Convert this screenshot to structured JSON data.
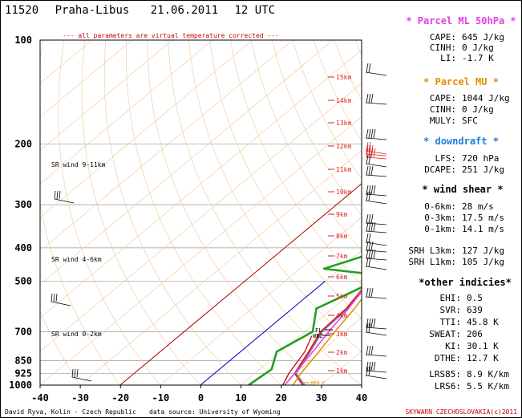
{
  "header": {
    "station": "11520",
    "place": "Praha-Libus",
    "date": "21.06.2011",
    "time": "12 UTC"
  },
  "note": "--- all parameters are virtual temperature corrected ---",
  "footer": {
    "author": "David Ryva, Kolin - Czech Republic",
    "source": "data source: University of Wyoming",
    "copyright": "SKYWARN CZECHOSLOVAKIA(c)2011"
  },
  "chart_data": {
    "type": "line",
    "chart_kind": "skew-T log-P sounding",
    "x_axis": {
      "ticks": [
        -40,
        -30,
        -20,
        -10,
        0,
        10,
        20,
        30,
        40
      ],
      "min": -40,
      "max": 40,
      "unit": "°C"
    },
    "y_axis": {
      "ticks": [
        100,
        200,
        300,
        400,
        500,
        700,
        850,
        925,
        1000
      ],
      "min": 100,
      "max": 1000,
      "unit": "hPa",
      "scale": "log"
    },
    "height_ticks": [
      "1km",
      "2km",
      "3km",
      "4km",
      "5km",
      "6km",
      "7km",
      "8km",
      "9km",
      "10km",
      "11km",
      "12km",
      "13km",
      "14km",
      "15km"
    ],
    "sr_wind_labels": [
      "SR wind 9-11km",
      "SR wind 4-6km",
      "SR wind 0-2km"
    ],
    "level_labels": [
      "FL",
      "WBZ",
      "MULY"
    ],
    "series": [
      {
        "name": "temperature",
        "color": "#dd2222",
        "points": [
          [
            100,
            24.2
          ],
          [
            135,
            17
          ],
          [
            170,
            15
          ],
          [
            200,
            0.5
          ],
          [
            240,
            -3
          ],
          [
            290,
            -1
          ],
          [
            350,
            3
          ],
          [
            400,
            7
          ],
          [
            500,
            11
          ],
          [
            600,
            13.5
          ],
          [
            700,
            14
          ],
          [
            800,
            17
          ],
          [
            925,
            20
          ],
          [
            1000,
            25.5
          ]
        ]
      },
      {
        "name": "virtual temperature",
        "color": "#6b8cc6",
        "points": [
          [
            100,
            24.6
          ],
          [
            135,
            17.4
          ],
          [
            170,
            15.4
          ],
          [
            200,
            0.9
          ],
          [
            240,
            -2.6
          ],
          [
            290,
            -0.6
          ],
          [
            350,
            3.4
          ],
          [
            400,
            6.5
          ],
          [
            450,
            8
          ],
          [
            500,
            11.4
          ],
          [
            600,
            13.9
          ],
          [
            700,
            14.4
          ],
          [
            800,
            17.4
          ],
          [
            925,
            20.4
          ],
          [
            1000,
            26
          ]
        ]
      },
      {
        "name": "dewpoint",
        "color": "#22a022",
        "points": [
          [
            100,
            0
          ],
          [
            125,
            -6
          ],
          [
            150,
            -17
          ],
          [
            200,
            -24
          ],
          [
            230,
            -16
          ],
          [
            300,
            0
          ],
          [
            400,
            6
          ],
          [
            460,
            -4
          ],
          [
            480,
            12
          ],
          [
            520,
            11
          ],
          [
            600,
            6
          ],
          [
            700,
            12
          ],
          [
            800,
            9
          ],
          [
            900,
            13
          ],
          [
            1000,
            12
          ]
        ]
      },
      {
        "name": "parcel ML 50hPa",
        "color": "#e040e0",
        "points": [
          [
            100,
            -16
          ],
          [
            150,
            -20
          ],
          [
            200,
            -12
          ],
          [
            300,
            -3
          ],
          [
            400,
            5
          ],
          [
            500,
            11
          ],
          [
            600,
            14
          ],
          [
            700,
            16
          ],
          [
            800,
            18
          ],
          [
            925,
            20
          ],
          [
            1000,
            21
          ]
        ]
      },
      {
        "name": "parcel MU",
        "color": "#e68a00",
        "points": [
          [
            100,
            -14.5
          ],
          [
            150,
            -18.5
          ],
          [
            200,
            -10.5
          ],
          [
            300,
            -1.5
          ],
          [
            400,
            6.5
          ],
          [
            500,
            12.5
          ],
          [
            600,
            15.5
          ],
          [
            700,
            17.5
          ],
          [
            800,
            19.5
          ],
          [
            925,
            21.5
          ],
          [
            1000,
            23
          ]
        ]
      },
      {
        "name": "downdraft",
        "color": "#aa1111",
        "points": [
          [
            720,
            13
          ],
          [
            800,
            16
          ],
          [
            925,
            18.5
          ],
          [
            1000,
            20.5
          ]
        ]
      }
    ],
    "isotherm_lines": [
      {
        "name": "0°C isotherm",
        "color": "#0000cc",
        "from": [
          1000,
          0
        ],
        "to": [
          500,
          38
        ]
      },
      {
        "name": "-20°C isotherm",
        "color": "#aa0000",
        "from": [
          1000,
          -20
        ],
        "to": [
          200,
          30
        ]
      }
    ]
  },
  "parcel_ml": {
    "title": "* Parcel ML 50hPa *",
    "rows": [
      {
        "label": "CAPE:",
        "value": "645 J/kg"
      },
      {
        "label": "CINH:",
        "value": "0 J/kg"
      },
      {
        "label": "LI:",
        "value": "-1.7 K"
      }
    ]
  },
  "parcel_mu": {
    "title": "* Parcel MU *",
    "rows": [
      {
        "label": "CAPE:",
        "value": "1044 J/kg"
      },
      {
        "label": "CINH:",
        "value": "0 J/kg"
      },
      {
        "label": "MULY:",
        "value": "SFC"
      }
    ]
  },
  "downdraft": {
    "title": "* downdraft *",
    "rows": [
      {
        "label": "LFS:",
        "value": "720 hPa"
      },
      {
        "label": "DCAPE:",
        "value": "251 J/kg"
      }
    ]
  },
  "wind_shear": {
    "title": "* wind shear *",
    "rows": [
      {
        "label": "0-6km:",
        "value": "28 m/s"
      },
      {
        "label": "0-3km:",
        "value": "17.5 m/s"
      },
      {
        "label": "0-1km:",
        "value": "14.1 m/s"
      },
      {
        "label": "SRH L3km:",
        "value": "127 J/kg"
      },
      {
        "label": "SRH L1km:",
        "value": "105 J/kg"
      }
    ]
  },
  "other": {
    "title": "*other indicies*",
    "rows": [
      {
        "label": "EHI:",
        "value": "0.5"
      },
      {
        "label": "SVR:",
        "value": "639"
      },
      {
        "label": "TTI:",
        "value": "45.8 K"
      },
      {
        "label": "SWEAT:",
        "value": "206"
      },
      {
        "label": "KI:",
        "value": "30.1 K"
      },
      {
        "label": "DTHE:",
        "value": "12.7 K"
      },
      {
        "label": "LRS85:",
        "value": "8.9 K/km"
      },
      {
        "label": "LRS6:",
        "value": "5.5 K/km"
      }
    ]
  }
}
